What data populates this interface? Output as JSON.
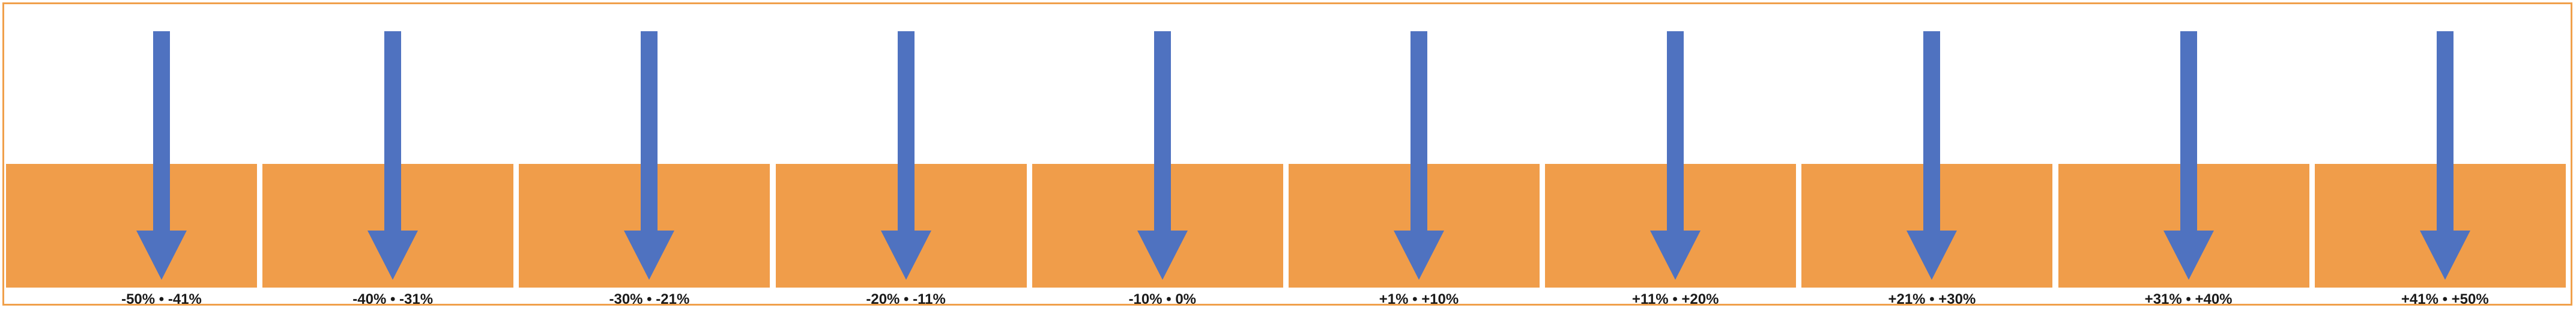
{
  "colors": {
    "frame_border": "#f0a04b",
    "segment_fill": "#f09d4a",
    "arrow_fill": "#4f72c0",
    "label_text": "#1a1a1a",
    "background": "#ffffff"
  },
  "icons": {
    "arrow": "arrow-down-icon"
  },
  "segments": [
    {
      "label": "-50% • -41%"
    },
    {
      "label": "-40% • -31%"
    },
    {
      "label": "-30% • -21%"
    },
    {
      "label": "-20% • -11%"
    },
    {
      "label": "-10% • 0%"
    },
    {
      "label": "+1% • +10%"
    },
    {
      "label": "+11% • +20%"
    },
    {
      "label": "+21% • +30%"
    },
    {
      "label": "+31% • +40%"
    },
    {
      "label": "+41% • +50%"
    }
  ]
}
